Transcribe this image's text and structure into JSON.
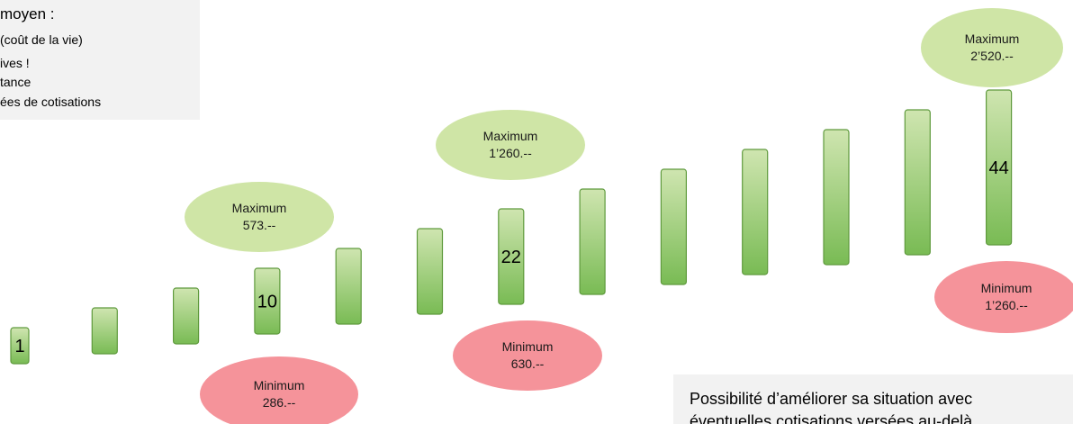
{
  "info_box": {
    "lines": [
      "moyen :",
      "(coût de la vie)",
      "ives !",
      "tance",
      "ées de cotisations"
    ]
  },
  "bottom_note": {
    "line1": "Possibilité d’améliorer sa situation avec",
    "line2": "éventuelles cotisations versées au-delà"
  },
  "chart_data": {
    "type": "bar",
    "unit_axis": "années de cotisations",
    "bar_count": 13,
    "bar_labels": [
      {
        "bar": 1,
        "text": "1"
      },
      {
        "bar": 4,
        "text": "10"
      },
      {
        "bar": 7,
        "text": "22"
      },
      {
        "bar": 13,
        "text": "44"
      }
    ],
    "maximum": [
      {
        "bar": 4,
        "label": "Maximum",
        "value": "573.--"
      },
      {
        "bar": 7,
        "label": "Maximum",
        "value": "1’260.--"
      },
      {
        "bar": 13,
        "label": "Maximum",
        "value": "2’520.--"
      }
    ],
    "minimum": [
      {
        "bar": 4,
        "label": "Minimum",
        "value": "286.--"
      },
      {
        "bar": 7,
        "label": "Minimum",
        "value": "630.--"
      },
      {
        "bar": 13,
        "label": "Minimum",
        "value": "1’260.--"
      }
    ],
    "colors": {
      "bar_top": "#cfe5b0",
      "bar_bottom": "#79bb54",
      "bar_edge": "#5f9a3d",
      "maximum_fill": "#cfe5a6",
      "minimum_fill": "#f5939a"
    }
  }
}
